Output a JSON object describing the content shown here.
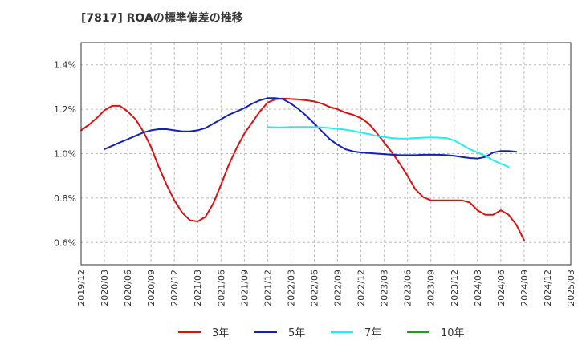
{
  "chart_data": {
    "type": "line",
    "title": "[7817]  ROAの標準偏差の推移",
    "xlabel": "",
    "ylabel": "",
    "y_ticks": [
      "0.6%",
      "0.8%",
      "1.0%",
      "1.2%",
      "1.4%"
    ],
    "y_tick_values": [
      0.6,
      0.8,
      1.0,
      1.2,
      1.4
    ],
    "ylim": [
      0.5,
      1.5
    ],
    "x_ticks": [
      "2019/12",
      "2020/03",
      "2020/06",
      "2020/09",
      "2020/12",
      "2021/03",
      "2021/06",
      "2021/09",
      "2021/12",
      "2022/03",
      "2022/06",
      "2022/09",
      "2022/12",
      "2023/03",
      "2023/06",
      "2023/09",
      "2023/12",
      "2024/03",
      "2024/06",
      "2024/09",
      "2024/12",
      "2025/03"
    ],
    "xlim": [
      "2019/12",
      "2025/03"
    ],
    "grid": true,
    "legend_position": "bottom",
    "series": [
      {
        "name": "3年",
        "color": "#dd1111",
        "points": [
          [
            "2019/12",
            1.105
          ],
          [
            "2020/01",
            1.13
          ],
          [
            "2020/02",
            1.16
          ],
          [
            "2020/03",
            1.195
          ],
          [
            "2020/04",
            1.215
          ],
          [
            "2020/05",
            1.215
          ],
          [
            "2020/06",
            1.19
          ],
          [
            "2020/07",
            1.155
          ],
          [
            "2020/08",
            1.1
          ],
          [
            "2020/09",
            1.03
          ],
          [
            "2020/10",
            0.94
          ],
          [
            "2020/11",
            0.86
          ],
          [
            "2020/12",
            0.79
          ],
          [
            "2021/01",
            0.735
          ],
          [
            "2021/02",
            0.7
          ],
          [
            "2021/03",
            0.695
          ],
          [
            "2021/04",
            0.715
          ],
          [
            "2021/05",
            0.775
          ],
          [
            "2021/06",
            0.86
          ],
          [
            "2021/07",
            0.95
          ],
          [
            "2021/08",
            1.025
          ],
          [
            "2021/09",
            1.09
          ],
          [
            "2021/10",
            1.14
          ],
          [
            "2021/11",
            1.19
          ],
          [
            "2021/12",
            1.23
          ],
          [
            "2022/01",
            1.245
          ],
          [
            "2022/02",
            1.248
          ],
          [
            "2022/03",
            1.246
          ],
          [
            "2022/04",
            1.244
          ],
          [
            "2022/05",
            1.24
          ],
          [
            "2022/06",
            1.235
          ],
          [
            "2022/07",
            1.225
          ],
          [
            "2022/08",
            1.21
          ],
          [
            "2022/09",
            1.2
          ],
          [
            "2022/10",
            1.185
          ],
          [
            "2022/11",
            1.175
          ],
          [
            "2022/12",
            1.16
          ],
          [
            "2023/01",
            1.135
          ],
          [
            "2023/02",
            1.095
          ],
          [
            "2023/03",
            1.05
          ],
          [
            "2023/04",
            1.005
          ],
          [
            "2023/05",
            0.955
          ],
          [
            "2023/06",
            0.9
          ],
          [
            "2023/07",
            0.84
          ],
          [
            "2023/08",
            0.805
          ],
          [
            "2023/09",
            0.79
          ],
          [
            "2023/10",
            0.79
          ],
          [
            "2023/11",
            0.79
          ],
          [
            "2023/12",
            0.79
          ],
          [
            "2024/01",
            0.79
          ],
          [
            "2024/02",
            0.78
          ],
          [
            "2024/03",
            0.745
          ],
          [
            "2024/04",
            0.725
          ],
          [
            "2024/05",
            0.725
          ],
          [
            "2024/06",
            0.745
          ],
          [
            "2024/07",
            0.725
          ],
          [
            "2024/08",
            0.68
          ],
          [
            "2024/09",
            0.61
          ]
        ]
      },
      {
        "name": "5年",
        "color": "#1122bb",
        "points": [
          [
            "2020/03",
            1.02
          ],
          [
            "2020/04",
            1.035
          ],
          [
            "2020/05",
            1.05
          ],
          [
            "2020/06",
            1.065
          ],
          [
            "2020/07",
            1.08
          ],
          [
            "2020/08",
            1.095
          ],
          [
            "2020/09",
            1.105
          ],
          [
            "2020/10",
            1.11
          ],
          [
            "2020/11",
            1.11
          ],
          [
            "2020/12",
            1.105
          ],
          [
            "2021/01",
            1.1
          ],
          [
            "2021/02",
            1.1
          ],
          [
            "2021/03",
            1.105
          ],
          [
            "2021/04",
            1.115
          ],
          [
            "2021/05",
            1.135
          ],
          [
            "2021/06",
            1.155
          ],
          [
            "2021/07",
            1.175
          ],
          [
            "2021/08",
            1.19
          ],
          [
            "2021/09",
            1.205
          ],
          [
            "2021/10",
            1.225
          ],
          [
            "2021/11",
            1.24
          ],
          [
            "2021/12",
            1.25
          ],
          [
            "2022/01",
            1.25
          ],
          [
            "2022/02",
            1.245
          ],
          [
            "2022/03",
            1.225
          ],
          [
            "2022/04",
            1.2
          ],
          [
            "2022/05",
            1.17
          ],
          [
            "2022/06",
            1.135
          ],
          [
            "2022/07",
            1.1
          ],
          [
            "2022/08",
            1.065
          ],
          [
            "2022/09",
            1.04
          ],
          [
            "2022/10",
            1.02
          ],
          [
            "2022/11",
            1.01
          ],
          [
            "2022/12",
            1.005
          ],
          [
            "2023/01",
            1.003
          ],
          [
            "2023/02",
            1.0
          ],
          [
            "2023/03",
            0.998
          ],
          [
            "2023/04",
            0.995
          ],
          [
            "2023/05",
            0.993
          ],
          [
            "2023/06",
            0.993
          ],
          [
            "2023/07",
            0.993
          ],
          [
            "2023/08",
            0.995
          ],
          [
            "2023/09",
            0.995
          ],
          [
            "2023/10",
            0.995
          ],
          [
            "2023/11",
            0.993
          ],
          [
            "2023/12",
            0.99
          ],
          [
            "2024/01",
            0.985
          ],
          [
            "2024/02",
            0.98
          ],
          [
            "2024/03",
            0.978
          ],
          [
            "2024/04",
            0.985
          ],
          [
            "2024/05",
            1.005
          ],
          [
            "2024/06",
            1.012
          ],
          [
            "2024/07",
            1.012
          ],
          [
            "2024/08",
            1.008
          ]
        ]
      },
      {
        "name": "7年",
        "color": "#22eeee",
        "points": [
          [
            "2021/12",
            1.12
          ],
          [
            "2022/01",
            1.118
          ],
          [
            "2022/02",
            1.118
          ],
          [
            "2022/03",
            1.12
          ],
          [
            "2022/04",
            1.12
          ],
          [
            "2022/05",
            1.12
          ],
          [
            "2022/06",
            1.12
          ],
          [
            "2022/07",
            1.118
          ],
          [
            "2022/08",
            1.115
          ],
          [
            "2022/09",
            1.112
          ],
          [
            "2022/10",
            1.108
          ],
          [
            "2022/11",
            1.102
          ],
          [
            "2022/12",
            1.095
          ],
          [
            "2023/01",
            1.088
          ],
          [
            "2023/02",
            1.08
          ],
          [
            "2023/03",
            1.075
          ],
          [
            "2023/04",
            1.07
          ],
          [
            "2023/05",
            1.068
          ],
          [
            "2023/06",
            1.068
          ],
          [
            "2023/07",
            1.07
          ],
          [
            "2023/08",
            1.072
          ],
          [
            "2023/09",
            1.073
          ],
          [
            "2023/10",
            1.072
          ],
          [
            "2023/11",
            1.07
          ],
          [
            "2023/12",
            1.06
          ],
          [
            "2024/01",
            1.04
          ],
          [
            "2024/02",
            1.02
          ],
          [
            "2024/03",
            1.005
          ],
          [
            "2024/04",
            0.99
          ],
          [
            "2024/05",
            0.97
          ],
          [
            "2024/06",
            0.955
          ],
          [
            "2024/07",
            0.94
          ]
        ]
      },
      {
        "name": "10年",
        "color": "#229922",
        "points": []
      }
    ]
  }
}
